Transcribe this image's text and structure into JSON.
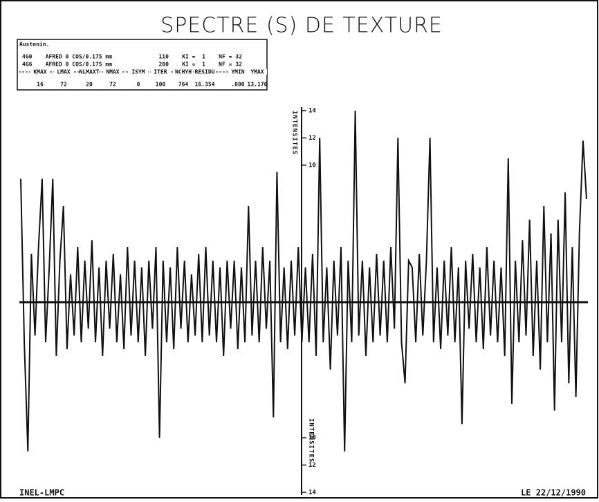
{
  "chart_data": {
    "type": "line",
    "title": "SPECTRE (S)  DE  TEXTURE",
    "info": {
      "material": "Austenin.",
      "rows": [
        "4G0    AFRED 0 COS/0.175 mm              110    KI =  1    NF = 32",
        "4G6    AFRED 0 COS/0.175 mm              200    KI =  1    NF = 32"
      ],
      "columns": [
        "KMAX",
        "LMAX",
        "NLMAXT",
        "NMAX",
        "ISYM",
        "ITER",
        "NCHYH",
        "RESIDU",
        "YMIN",
        "YMAX"
      ],
      "values": [
        "16",
        "72",
        "20",
        "72",
        "0",
        "100",
        "764",
        "16.354",
        ".000",
        "13.170"
      ]
    },
    "y_labels": [
      "INTENSITES",
      "INTENSITES"
    ],
    "footer_left": "INEL-LMPC",
    "footer_right": "LE 22/12/1990",
    "ylim": [
      -14,
      14
    ],
    "yticks": [
      {
        "value": -14,
        "label": "14"
      },
      {
        "value": -12,
        "label": "12"
      },
      {
        "value": -10,
        "label": "10"
      },
      10,
      12,
      14
    ],
    "color": "#111111",
    "values": [
      9,
      -3,
      -11,
      3.5,
      -2.5,
      4,
      9,
      -3,
      2.5,
      9,
      -4,
      3,
      7,
      -3.5,
      2,
      -2.5,
      4,
      -3,
      3,
      -2,
      4.5,
      -3,
      2.5,
      -4,
      3,
      -2,
      3.5,
      -3,
      2,
      -3.5,
      4,
      -2.5,
      3,
      -3,
      2.5,
      -4,
      3,
      -2,
      4,
      -10,
      3,
      -3,
      2.5,
      -3.5,
      4,
      -2,
      3,
      -3,
      2,
      -2.5,
      3.5,
      -3,
      4,
      -2.5,
      3,
      -3,
      2.5,
      -4,
      3,
      -2,
      3,
      -3.5,
      2.5,
      -3,
      7,
      -2.5,
      3,
      -3,
      4,
      -2,
      3,
      -8.5,
      9.5,
      -3,
      2.5,
      -3.5,
      3,
      -2.5,
      4,
      -3,
      2.5,
      -3,
      3.5,
      -4,
      12,
      -3,
      2.5,
      -5,
      3,
      -2.5,
      4,
      -11,
      3,
      -3,
      14,
      -2.5,
      3,
      -4,
      2.5,
      -3,
      3.5,
      -2.5,
      3,
      -3,
      4,
      -2,
      12,
      -3,
      -6,
      3,
      2.5,
      -3,
      3.5,
      -2.5,
      3,
      12,
      -3,
      2.5,
      -3.5,
      3,
      -2.5,
      4,
      -3,
      2.5,
      -9,
      3,
      -2,
      3.5,
      -3,
      2.5,
      -3.5,
      4,
      -2.5,
      3,
      -3,
      2.5,
      -4,
      10.5,
      -7.5,
      3,
      -3,
      4.5,
      -2.5,
      6,
      -4,
      3,
      -5,
      7,
      -3,
      5,
      -8,
      6,
      -3,
      8,
      -6,
      4,
      -7,
      5,
      11.8,
      7.5
    ]
  }
}
